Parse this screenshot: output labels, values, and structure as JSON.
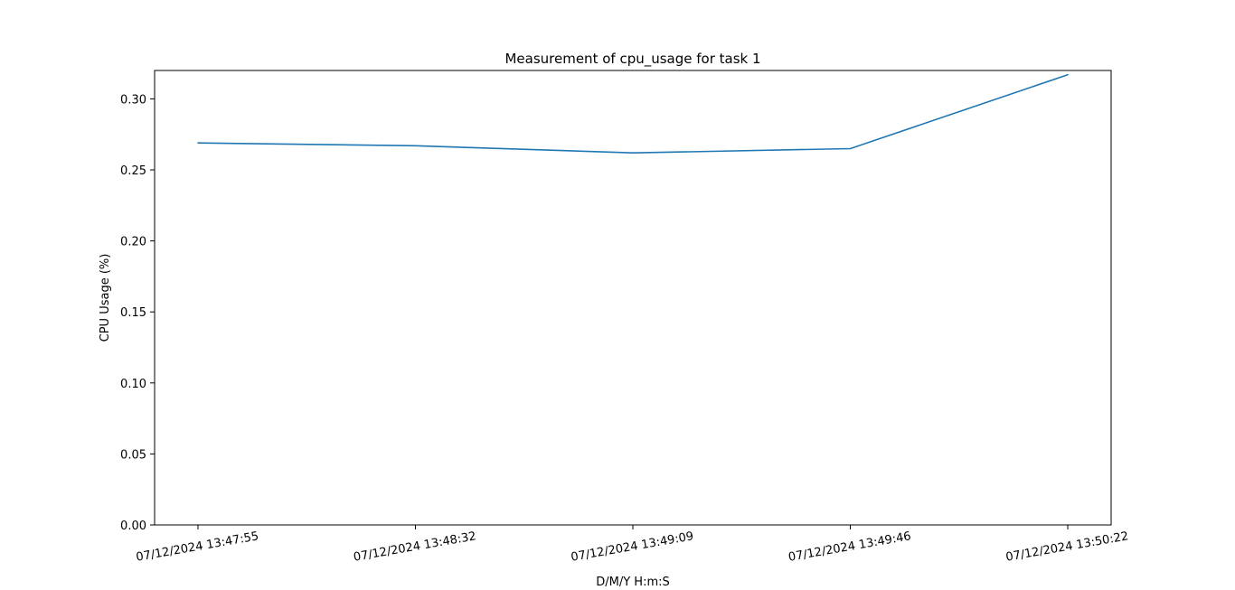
{
  "chart_data": {
    "type": "line",
    "title": "Measurement of cpu_usage for task 1",
    "xlabel": "D/M/Y H:m:S",
    "ylabel": "CPU Usage (%)",
    "categories": [
      "07/12/2024 13:47:55",
      "07/12/2024 13:48:32",
      "07/12/2024 13:49:09",
      "07/12/2024 13:49:46",
      "07/12/2024 13:50:22"
    ],
    "series": [
      {
        "values": [
          0.269,
          0.267,
          0.262,
          0.265,
          0.317
        ],
        "color": "#1f77b4"
      }
    ],
    "ylim": [
      0.0,
      0.32
    ],
    "yticks": [
      "0.00",
      "0.05",
      "0.10",
      "0.15",
      "0.20",
      "0.25",
      "0.30"
    ],
    "grid": false,
    "legend": "none"
  }
}
